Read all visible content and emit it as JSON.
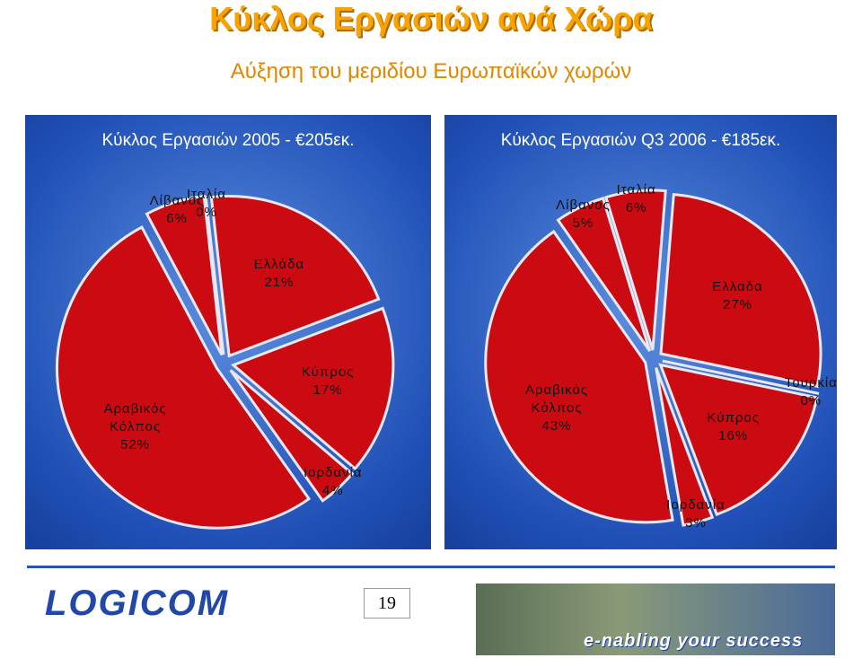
{
  "title": "Κύκλος Εργασιών ανά Χώρα",
  "subtitle": "Αύξηση του μεριδίου Ευρωπαϊκών χωρών",
  "chart_data": [
    {
      "type": "pie",
      "title": "Κύκλος Εργασιών 2005 - €205εκ.",
      "color": "#cc0a12",
      "categories": [
        "Λίβανος",
        "Ιταλία",
        "Ελλάδα",
        "Κύπρος",
        "Ιορδανία",
        "Αραβικός Κόλπος"
      ],
      "values": [
        6,
        0,
        21,
        17,
        4,
        52
      ],
      "value_labels": [
        "6%",
        "0%",
        "21%",
        "17%",
        "4%",
        "52%"
      ]
    },
    {
      "type": "pie",
      "title": "Κύκλος Εργασιών Q3 2006 - €185εκ.",
      "color": "#cc0a12",
      "categories": [
        "Λίβανος",
        "Ιταλία",
        "Ελλαδα",
        "Τουρκία",
        "Κύπρος",
        "Ιορδανία",
        "Αραβικός Κόλπος"
      ],
      "values": [
        5,
        6,
        27,
        0,
        16,
        3,
        43
      ],
      "value_labels": [
        "5%",
        "6%",
        "27%",
        "0%",
        "16%",
        "3%",
        "43%"
      ]
    }
  ],
  "footer": {
    "page_number": "19",
    "logo": "LOGICOM",
    "slogan": "e-nabling your success"
  }
}
